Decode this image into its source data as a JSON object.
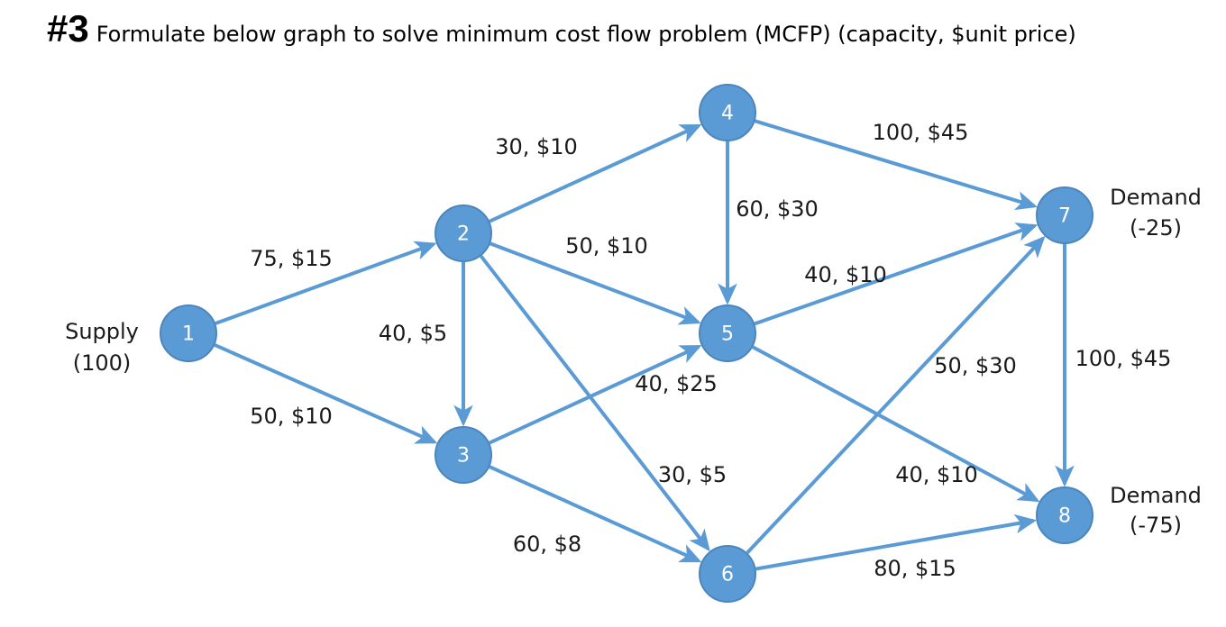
{
  "header": {
    "number": "#3",
    "text": "Formulate below graph to solve minimum cost flow problem (MCFP) (capacity, $unit price)"
  },
  "colors": {
    "node_fill": "#5b9bd5",
    "edge": "#5b9bd5",
    "node_text": "#ffffff",
    "label_text": "#1a1a1a"
  },
  "nodes": [
    {
      "id": "1",
      "label": "1"
    },
    {
      "id": "2",
      "label": "2"
    },
    {
      "id": "3",
      "label": "3"
    },
    {
      "id": "4",
      "label": "4"
    },
    {
      "id": "5",
      "label": "5"
    },
    {
      "id": "6",
      "label": "6"
    },
    {
      "id": "7",
      "label": "7"
    },
    {
      "id": "8",
      "label": "8"
    }
  ],
  "edges": [
    {
      "from": "1",
      "to": "2",
      "label": "75, $15"
    },
    {
      "from": "1",
      "to": "3",
      "label": "50, $10"
    },
    {
      "from": "2",
      "to": "4",
      "label": "30, $10"
    },
    {
      "from": "2",
      "to": "5",
      "label": "50, $10"
    },
    {
      "from": "2",
      "to": "3",
      "label": "40, $5"
    },
    {
      "from": "2",
      "to": "6",
      "label": "30, $5"
    },
    {
      "from": "3",
      "to": "5",
      "label": "40, $25"
    },
    {
      "from": "3",
      "to": "6",
      "label": "60, $8"
    },
    {
      "from": "4",
      "to": "5",
      "label": "60, $30"
    },
    {
      "from": "4",
      "to": "7",
      "label": "100, $45"
    },
    {
      "from": "5",
      "to": "7",
      "label": "40, $10"
    },
    {
      "from": "5",
      "to": "8",
      "label": "40, $10"
    },
    {
      "from": "6",
      "to": "7",
      "label": "50, $30"
    },
    {
      "from": "6",
      "to": "8",
      "label": "80, $15"
    },
    {
      "from": "7",
      "to": "8",
      "label": "100, $45"
    }
  ],
  "annotations": [
    {
      "node": "1",
      "lines": [
        "Supply",
        "(100)"
      ]
    },
    {
      "node": "7",
      "lines": [
        "Demand",
        "(-25)"
      ]
    },
    {
      "node": "8",
      "lines": [
        "Demand",
        "(-75)"
      ]
    }
  ]
}
